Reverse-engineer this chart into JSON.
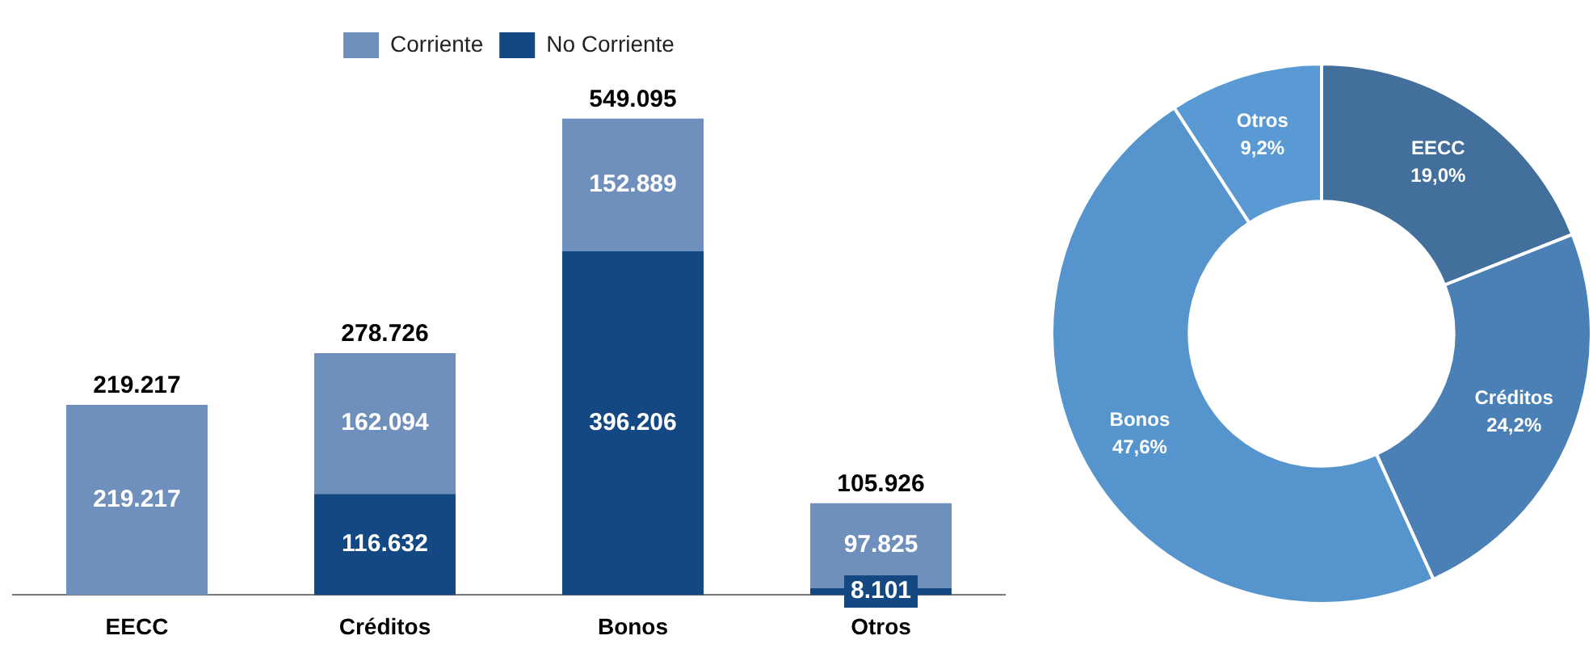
{
  "chart_data": [
    {
      "type": "bar",
      "stacked": true,
      "categories": [
        "EECC",
        "Créditos",
        "Bonos",
        "Otros"
      ],
      "series": [
        {
          "name": "No Corriente",
          "color": "#144882",
          "values": [
            null,
            116632,
            396206,
            8101
          ],
          "value_labels": [
            null,
            "116.632",
            "396.206",
            "8.101"
          ]
        },
        {
          "name": "Corriente",
          "color": "#6f8fbd",
          "values": [
            219217,
            162094,
            152889,
            97825
          ],
          "value_labels": [
            "219.217",
            "162.094",
            "152.889",
            "97.825"
          ]
        }
      ],
      "totals": [
        "219.217",
        "278.726",
        "549.095",
        "105.926"
      ],
      "legend": "top",
      "tick_labels": "x",
      "grid": false
    },
    {
      "type": "donut",
      "categories": [
        "EECC",
        "Créditos",
        "Bonos",
        "Otros"
      ],
      "values": [
        19.0,
        24.2,
        47.6,
        9.2
      ],
      "value_labels": [
        "19,0%",
        "24,2%",
        "47,6%",
        "9,2%"
      ],
      "colors": [
        "#426f9c",
        "#4b80b6",
        "#5594cd",
        "#5a9ad4"
      ],
      "legend": false
    }
  ]
}
